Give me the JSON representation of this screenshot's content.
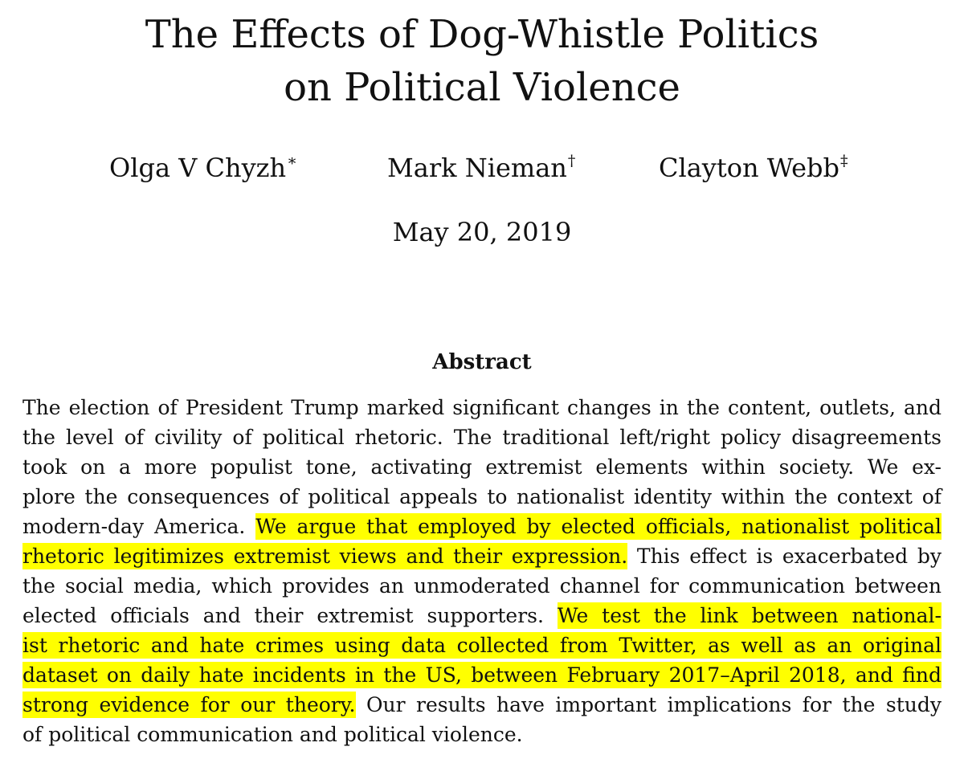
{
  "title": {
    "line1": "The Effects of Dog-Whistle Politics",
    "line2": "on Political Violence"
  },
  "authors": [
    {
      "name": "Olga V Chyzh",
      "mark": "∗"
    },
    {
      "name": "Mark Nieman",
      "mark": "†"
    },
    {
      "name": "Clayton Webb",
      "mark": "‡"
    }
  ],
  "date": "May 20, 2019",
  "abstract": {
    "heading": "Abstract",
    "highlight_color": "#ffff00",
    "lines": {
      "l1": "The election of President Trump marked significant changes in the content, outlets, and",
      "l2": "the level of civility of political rhetoric. The traditional left/right policy disagreements",
      "l3": "took on a more populist tone, activating extremist elements within society. We ex-",
      "l4": "plore the consequences of political appeals to nationalist identity within the context of",
      "l5_plain": "modern-day America.",
      "l5_hl": "We argue that employed by elected officials, nationalist political",
      "l6_hl": "rhetoric legitimizes extremist views and their expression.",
      "l6_plain": "This effect is exacerbated by",
      "l7": "the social media, which provides an unmoderated channel for communication between",
      "l8_plain": "elected officials and their extremist supporters.",
      "l8_hl": "We test the link between national-",
      "l9_hl": "ist rhetoric and hate crimes using data collected from Twitter, as well as an original",
      "l10_hl": "dataset on daily hate incidents in the US, between February 2017–April 2018, and find",
      "l11_hl": "strong evidence for our theory.",
      "l11_plain": "Our results have important implications for the study",
      "l12": "of political communication and political violence."
    }
  }
}
